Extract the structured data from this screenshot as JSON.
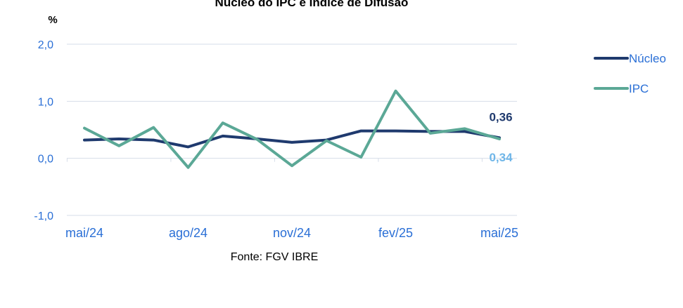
{
  "chart_data": {
    "type": "line",
    "title": "Núcleo do IPC e Índice de Difusão",
    "ylabel": "%",
    "source": "Fonte: FGV IBRE",
    "ylim": [
      -1.0,
      2.0
    ],
    "yticks": [
      "2,0",
      "1,0",
      "0,0",
      "-1,0"
    ],
    "ytick_values": [
      2.0,
      1.0,
      0.0,
      -1.0
    ],
    "x": [
      "mai/24",
      "jun/24",
      "jul/24",
      "ago/24",
      "set/24",
      "out/24",
      "nov/24",
      "dez/24",
      "jan/25",
      "fev/25",
      "mar/25",
      "abr/25",
      "mai/25"
    ],
    "xtick_labels": [
      "mai/24",
      "ago/24",
      "nov/24",
      "fev/25",
      "mai/25"
    ],
    "xtick_indices": [
      0,
      3,
      6,
      9,
      12
    ],
    "grid": true,
    "legend": "right",
    "series": [
      {
        "name": "Núcleo",
        "color": "#1f3a6e",
        "values": [
          0.32,
          0.34,
          0.32,
          0.2,
          0.39,
          0.34,
          0.28,
          0.32,
          0.48,
          0.48,
          0.47,
          0.47,
          0.36
        ]
      },
      {
        "name": "IPC",
        "color": "#5ba896",
        "values": [
          0.53,
          0.22,
          0.54,
          -0.16,
          0.62,
          0.33,
          -0.13,
          0.31,
          0.02,
          1.18,
          0.44,
          0.52,
          0.34
        ]
      }
    ],
    "annotations": [
      {
        "text": "0,36",
        "series": 0,
        "index": 12,
        "color": "#1f3a6e"
      },
      {
        "text": "0,34",
        "series": 1,
        "index": 12,
        "color": "#6fb6e8"
      }
    ]
  }
}
